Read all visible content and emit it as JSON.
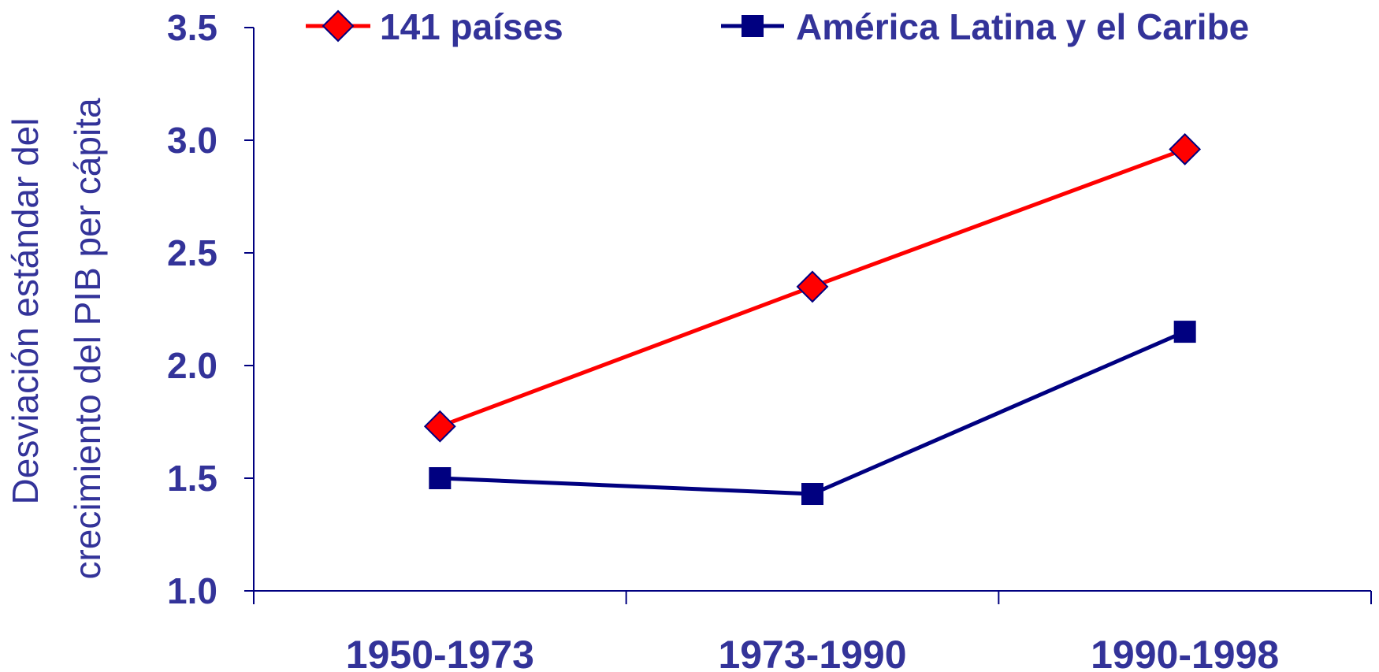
{
  "chart_data": {
    "type": "line",
    "categories": [
      "1950-1973",
      "1973-1990",
      "1990-1998"
    ],
    "series": [
      {
        "name": "141 países",
        "values": [
          1.73,
          2.35,
          2.96
        ],
        "color": "#FF0000",
        "marker": "diamond"
      },
      {
        "name": "América Latina y el Caribe",
        "values": [
          1.5,
          1.43,
          2.15
        ],
        "color": "#000080",
        "marker": "square"
      }
    ],
    "ylabel_lines": [
      "Desviación estándar del",
      "crecimiento del PIB per cápita"
    ],
    "ylim": [
      1.0,
      3.5
    ],
    "yticks": [
      "1.0",
      "1.5",
      "2.0",
      "2.5",
      "3.0",
      "3.5"
    ],
    "grid": false,
    "legend_position": "top",
    "colors": {
      "axis": "#000080",
      "text": "#333399"
    }
  }
}
